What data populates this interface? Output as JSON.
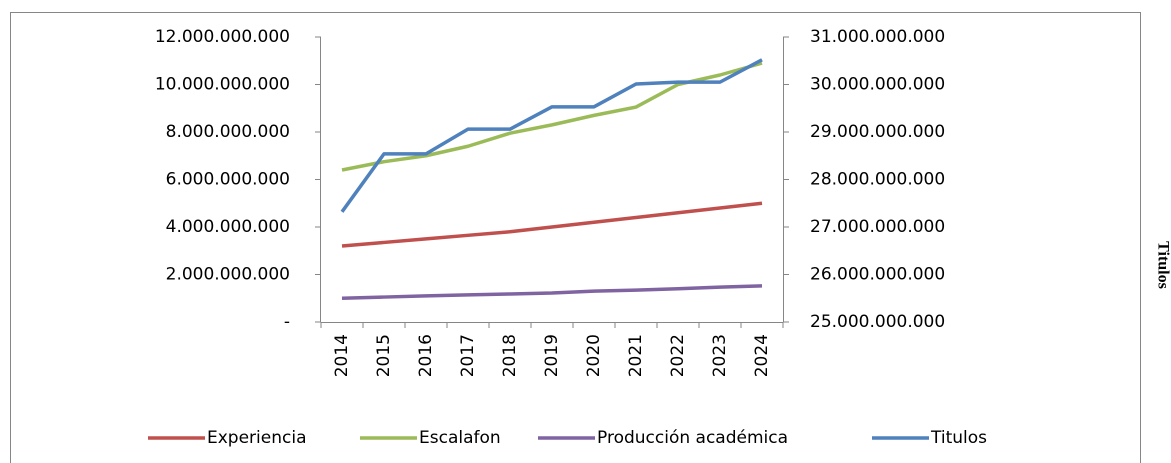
{
  "chart_data": {
    "type": "line",
    "y2_label": "Titulos",
    "categories": [
      "2014",
      "2015",
      "2016",
      "2017",
      "2018",
      "2019",
      "2020",
      "2021",
      "2022",
      "2023",
      "2024"
    ],
    "series": [
      {
        "name": "Experiencia",
        "color": "#c0504d",
        "values": [
          3200000000,
          3350000000,
          3500000000,
          3650000000,
          3800000000,
          4000000000,
          4200000000,
          4400000000,
          4600000000,
          4800000000,
          5000000000
        ]
      },
      {
        "name": "Escalafon",
        "color": "#9bbb59",
        "values": [
          6400000000,
          6750000000,
          7000000000,
          7400000000,
          7950000000,
          8300000000,
          8700000000,
          9050000000,
          10000000000,
          10400000000,
          10900000000
        ]
      },
      {
        "name": "Producción académica",
        "color": "#8064a2",
        "values": [
          1000000000,
          1050000000,
          1100000000,
          1140000000,
          1180000000,
          1220000000,
          1300000000,
          1340000000,
          1400000000,
          1470000000,
          1520000000
        ]
      },
      {
        "name": "Titulos",
        "color": "#4f81bd",
        "axis": "y2",
        "values": [
          27320000000,
          28540000000,
          28540000000,
          29060000000,
          29060000000,
          29530000000,
          29530000000,
          30010000000,
          30050000000,
          30050000000,
          30520000000
        ]
      }
    ],
    "ylim": [
      0,
      12000000000
    ],
    "yticks": [
      {
        "value": 0,
        "label": "-"
      },
      {
        "value": 2000000000,
        "label": "2.000.000.000"
      },
      {
        "value": 4000000000,
        "label": "4.000.000.000"
      },
      {
        "value": 6000000000,
        "label": "6.000.000.000"
      },
      {
        "value": 8000000000,
        "label": "8.000.000.000"
      },
      {
        "value": 10000000000,
        "label": "10.000.000.000"
      },
      {
        "value": 12000000000,
        "label": "12.000.000.000"
      }
    ],
    "y2lim": [
      25000000000,
      31000000000
    ],
    "y2ticks": [
      {
        "value": 25000000000,
        "label": "25.000.000.000"
      },
      {
        "value": 26000000000,
        "label": "26.000.000.000"
      },
      {
        "value": 27000000000,
        "label": "27.000.000.000"
      },
      {
        "value": 28000000000,
        "label": "28.000.000.000"
      },
      {
        "value": 29000000000,
        "label": "29.000.000.000"
      },
      {
        "value": 30000000000,
        "label": "30.000.000.000"
      },
      {
        "value": 31000000000,
        "label": "31.000.000.000"
      }
    ],
    "grid": false,
    "legend": "bottom"
  }
}
